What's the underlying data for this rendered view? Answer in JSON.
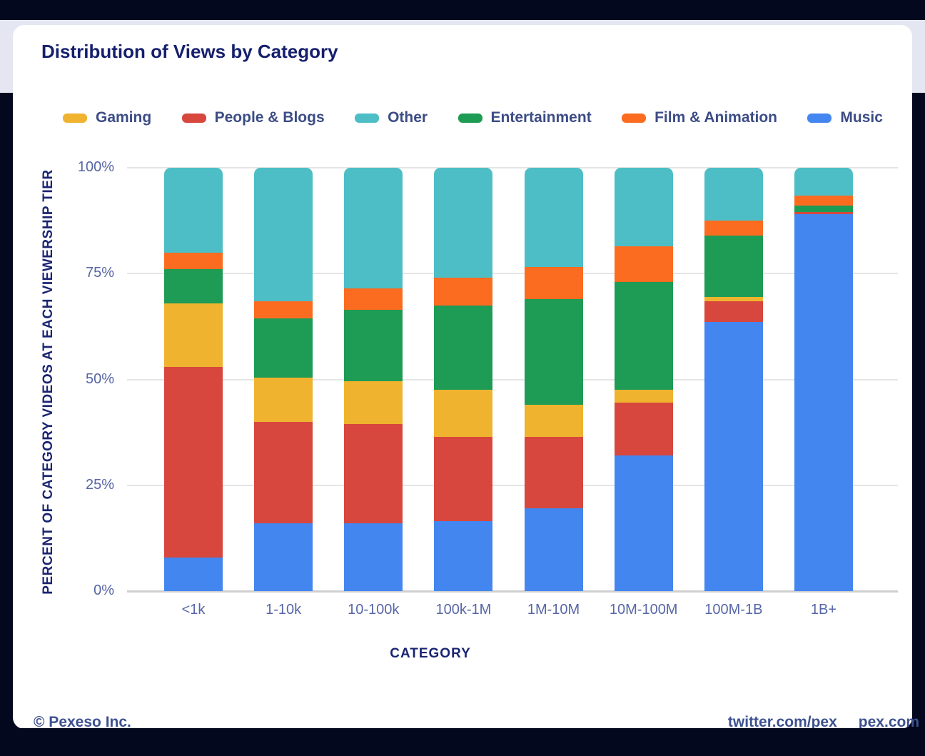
{
  "page": {
    "title": "Distribution of Views by Category",
    "footer": {
      "copyright": "© Pexeso Inc.",
      "links": [
        "twitter.com/pex",
        "pex.com"
      ]
    }
  },
  "colors": {
    "background_dark": "#04081f",
    "header_band": "#e4e7f1",
    "card": "#ffffff",
    "title_text": "#151f6d",
    "axis_title_text": "#1a2472",
    "tick_text": "#5766a6",
    "legend_text": "#3c4c85",
    "gridline": "#e5e5e5",
    "baseline": "#cfcfcf",
    "footer_text": "#3d5190"
  },
  "chart_data": {
    "type": "bar",
    "stacked": true,
    "units": "percent",
    "title": "Distribution of Views by Category",
    "xlabel": "CATEGORY",
    "ylabel": "PERCENT OF CATEGORY VIDEOS AT EACH VIEWERSHIP TIER",
    "categories": [
      "<1k",
      "1-10k",
      "10-100k",
      "100k-1M",
      "1M-10M",
      "10M-100M",
      "100M-1B",
      "1B+"
    ],
    "ylim": [
      0,
      100
    ],
    "y_tick_values": [
      0,
      25,
      50,
      75,
      100
    ],
    "y_tick_suffix": "%",
    "grid": true,
    "legend_position": "top",
    "legend_order": [
      "Gaming",
      "People & Blogs",
      "Other",
      "Entertainment",
      "Film & Animation",
      "Music"
    ],
    "stack_order_bottom_to_top": [
      "Music",
      "People & Blogs",
      "Gaming",
      "Entertainment",
      "Film & Animation",
      "Other"
    ],
    "series": [
      {
        "name": "Gaming",
        "color": "#efb32f",
        "values": [
          15,
          10.5,
          10,
          11,
          7.5,
          3,
          1,
          0
        ]
      },
      {
        "name": "People & Blogs",
        "color": "#d7473d",
        "values": [
          45,
          24,
          23.5,
          20,
          17,
          12.5,
          5,
          0.5
        ]
      },
      {
        "name": "Other",
        "color": "#4dbec6",
        "values": [
          20,
          31.5,
          28.5,
          26,
          23.5,
          18.5,
          12.5,
          6.5
        ]
      },
      {
        "name": "Entertainment",
        "color": "#1e9b55",
        "values": [
          8,
          14,
          17,
          20,
          25,
          25.5,
          14.5,
          1.5
        ]
      },
      {
        "name": "Film & Animation",
        "color": "#fb6c20",
        "values": [
          4,
          4,
          5,
          6.5,
          7.5,
          8.5,
          3.5,
          2.5
        ]
      },
      {
        "name": "Music",
        "color": "#4486ef",
        "values": [
          8,
          16,
          16,
          16.5,
          19.5,
          32,
          63.5,
          89
        ]
      }
    ]
  }
}
